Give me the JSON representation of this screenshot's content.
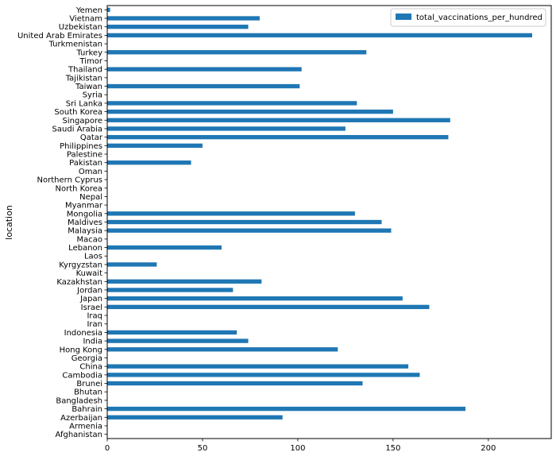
{
  "chart_data": {
    "type": "bar",
    "orientation": "horizontal",
    "ylabel": "location",
    "xlabel": "",
    "xlim": [
      0,
      233
    ],
    "xticks": [
      0,
      50,
      100,
      150,
      200
    ],
    "grid": false,
    "legend_position": "top-right",
    "categories": [
      "Afghanistan",
      "Armenia",
      "Azerbaijan",
      "Bahrain",
      "Bangladesh",
      "Bhutan",
      "Brunei",
      "Cambodia",
      "China",
      "Georgia",
      "Hong Kong",
      "India",
      "Indonesia",
      "Iran",
      "Iraq",
      "Israel",
      "Japan",
      "Jordan",
      "Kazakhstan",
      "Kuwait",
      "Kyrgyzstan",
      "Laos",
      "Lebanon",
      "Macao",
      "Malaysia",
      "Maldives",
      "Mongolia",
      "Myanmar",
      "Nepal",
      "North Korea",
      "Northern Cyprus",
      "Oman",
      "Pakistan",
      "Palestine",
      "Philippines",
      "Qatar",
      "Saudi Arabia",
      "Singapore",
      "South Korea",
      "Sri Lanka",
      "Syria",
      "Taiwan",
      "Tajikistan",
      "Thailand",
      "Timor",
      "Turkey",
      "Turkmenistan",
      "United Arab Emirates",
      "Uzbekistan",
      "Vietnam",
      "Yemen"
    ],
    "series": [
      {
        "name": "total_vaccinations_per_hundred",
        "color": "#1f77b4",
        "values": [
          0,
          0,
          92,
          188,
          0,
          0,
          134,
          164,
          158,
          0,
          121,
          74,
          68,
          0,
          0,
          169,
          155,
          66,
          81,
          0,
          26,
          0,
          60,
          0,
          149,
          144,
          130,
          0,
          0,
          0,
          0,
          0,
          44,
          0,
          50,
          179,
          125,
          180,
          150,
          131,
          0,
          101,
          0,
          102,
          0,
          136,
          0,
          223,
          74,
          80,
          1.5
        ]
      }
    ]
  }
}
